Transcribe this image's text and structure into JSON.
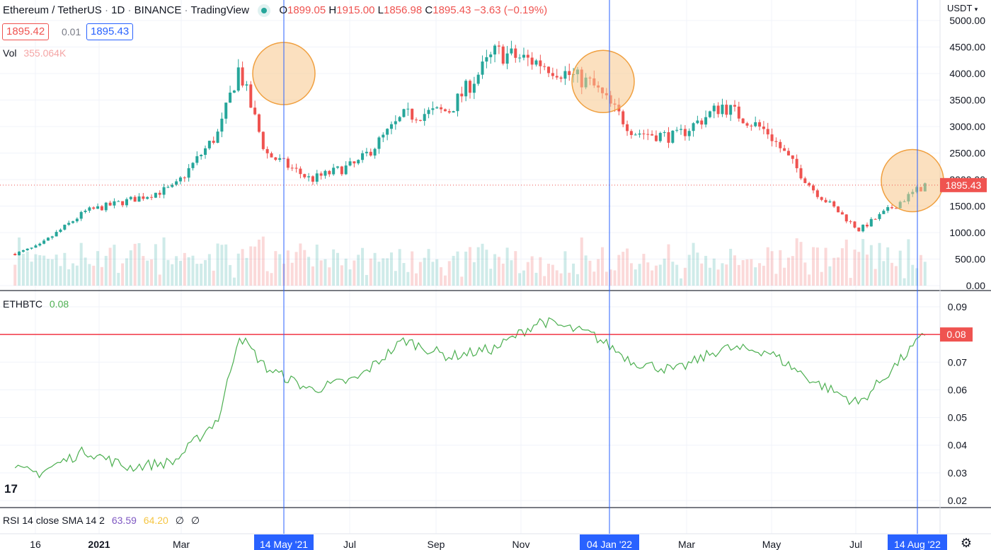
{
  "header": {
    "symbol": "Ethereum / TetherUS",
    "interval": "1D",
    "exchange": "BINANCE",
    "source": "TradingView",
    "ohlc": {
      "o_label": "O",
      "o": "1899.05",
      "h_label": "H",
      "h": "1915.00",
      "l_label": "L",
      "l": "1856.98",
      "c_label": "C",
      "c": "1895.43",
      "change": "−3.63 (−0.19%)"
    },
    "bid": "1895.42",
    "spread": "0.01",
    "ask": "1895.43",
    "currency": "USDT"
  },
  "volume": {
    "label": "Vol",
    "value": "355.064K"
  },
  "ethbtc": {
    "label": "ETHBTC",
    "value": "0.08",
    "last_badge": "0.08"
  },
  "rsi": {
    "label": "RSI 14 close SMA 14 2",
    "v1": "63.59",
    "v2": "64.20",
    "v3": "∅",
    "v4": "∅"
  },
  "last_price_badge": "1895.43",
  "time_axis": [
    {
      "label": "16",
      "hl": false
    },
    {
      "label": "2021",
      "hl": false,
      "bold": true
    },
    {
      "label": "Mar",
      "hl": false
    },
    {
      "label": "14 May '21",
      "hl": true
    },
    {
      "label": "Jul",
      "hl": false
    },
    {
      "label": "Sep",
      "hl": false
    },
    {
      "label": "Nov",
      "hl": false
    },
    {
      "label": "04 Jan '22",
      "hl": true
    },
    {
      "label": "Mar",
      "hl": false
    },
    {
      "label": "May",
      "hl": false
    },
    {
      "label": "Jul",
      "hl": false
    },
    {
      "label": "14 Aug '22",
      "hl": true
    }
  ],
  "colors": {
    "up": "#26a69a",
    "down": "#ef5350",
    "ethbtc": "#4caf50",
    "vline": "#2962ff",
    "hline": "#f23645",
    "circle_fill": "#f7c78a",
    "circle_stroke": "#f0a040"
  },
  "chart_data": [
    {
      "type": "line",
      "title": "Ethereum / TetherUS",
      "ylabel": "",
      "ylim": [
        0,
        5000
      ],
      "y_ticks": [
        "5000.00",
        "4500.00",
        "4000.00",
        "3500.00",
        "3000.00",
        "2500.00",
        "2000.00",
        "1500.00",
        "1000.00",
        "500.00",
        "0.00"
      ],
      "x": [
        "2020-12-16",
        "2021-01-01",
        "2021-02-01",
        "2021-03-01",
        "2021-04-01",
        "2021-05-01",
        "2021-05-14",
        "2021-06-01",
        "2021-07-01",
        "2021-08-01",
        "2021-09-01",
        "2021-10-01",
        "2021-11-01",
        "2021-12-01",
        "2022-01-04",
        "2022-02-01",
        "2022-03-01",
        "2022-04-01",
        "2022-05-01",
        "2022-06-01",
        "2022-07-01",
        "2022-08-14"
      ],
      "values": [
        600,
        750,
        1400,
        1600,
        1850,
        2900,
        4100,
        2500,
        2000,
        2300,
        3200,
        3300,
        4400,
        4200,
        3800,
        2900,
        2800,
        3400,
        2900,
        1800,
        1050,
        1900
      ],
      "last_price": 1895.43
    },
    {
      "type": "line",
      "title": "ETHBTC",
      "ylim": [
        0.02,
        0.09
      ],
      "y_ticks": [
        "0.09",
        "0.08",
        "0.07",
        "0.06",
        "0.05",
        "0.04",
        "0.03",
        "0.02"
      ],
      "x": [
        "2020-12-16",
        "2021-01-01",
        "2021-02-01",
        "2021-03-01",
        "2021-04-01",
        "2021-05-01",
        "2021-05-14",
        "2021-06-01",
        "2021-07-01",
        "2021-08-01",
        "2021-09-01",
        "2021-10-01",
        "2021-11-01",
        "2021-12-01",
        "2022-01-04",
        "2022-02-01",
        "2022-03-01",
        "2022-04-01",
        "2022-05-01",
        "2022-06-01",
        "2022-07-01",
        "2022-08-14"
      ],
      "values": [
        0.031,
        0.03,
        0.038,
        0.032,
        0.034,
        0.05,
        0.08,
        0.068,
        0.06,
        0.064,
        0.078,
        0.072,
        0.075,
        0.085,
        0.08,
        0.07,
        0.067,
        0.075,
        0.074,
        0.063,
        0.055,
        0.08
      ],
      "last_value": 0.08
    }
  ]
}
